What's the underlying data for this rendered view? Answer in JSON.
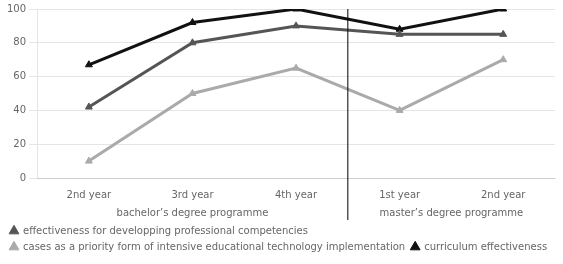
{
  "chart_data": {
    "type": "line",
    "categories": [
      "2nd year",
      "3rd year",
      "4th year",
      "1st year",
      "2nd year"
    ],
    "series": [
      {
        "name": "effectiveness for developping professional competencies",
        "color": "#555555",
        "values": [
          42,
          80,
          90,
          85,
          85
        ]
      },
      {
        "name": "cases as a priority form of intensive educational technology implementation",
        "color": "#aaaaaa",
        "values": [
          10,
          50,
          65,
          40,
          70
        ]
      },
      {
        "name": "curriculum effectiveness",
        "color": "#111111",
        "values": [
          67,
          92,
          100,
          88,
          100
        ]
      }
    ],
    "annotations": [
      {
        "text": "bachelor’s degree programme",
        "span": 3
      },
      {
        "text": "master’s degree programme",
        "span": 2
      }
    ],
    "ylim": [
      0,
      100
    ],
    "yticks": [
      0,
      20,
      40,
      60,
      80,
      100
    ],
    "grid": true,
    "legend": "bottom",
    "marker": "triangle"
  }
}
